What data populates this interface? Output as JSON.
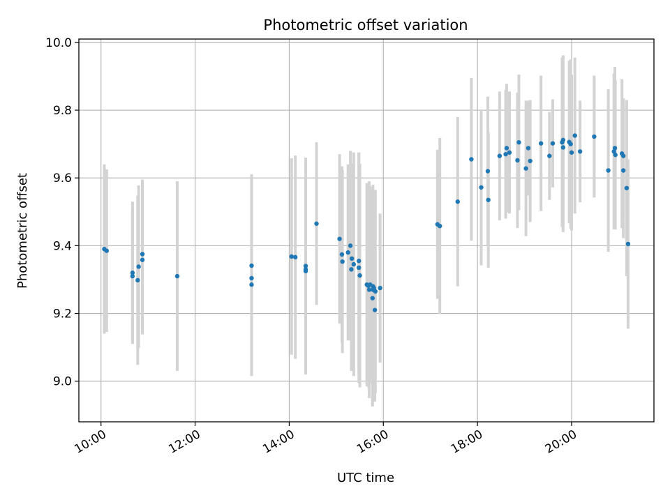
{
  "chart_data": {
    "type": "scatter",
    "title": "Photometric offset variation",
    "xlabel": "UTC time",
    "ylabel": "Photometric offset",
    "x_unit": "hours UTC",
    "xlim": [
      9.53,
      21.75
    ],
    "ylim": [
      8.88,
      10.01
    ],
    "x_ticks": [
      {
        "value": 10,
        "label": "10:00"
      },
      {
        "value": 12,
        "label": "12:00"
      },
      {
        "value": 14,
        "label": "14:00"
      },
      {
        "value": 16,
        "label": "16:00"
      },
      {
        "value": 18,
        "label": "18:00"
      },
      {
        "value": 20,
        "label": "20:00"
      }
    ],
    "y_ticks": [
      {
        "value": 9.0,
        "label": "9.0"
      },
      {
        "value": 9.2,
        "label": "9.2"
      },
      {
        "value": 9.4,
        "label": "9.4"
      },
      {
        "value": 9.6,
        "label": "9.6"
      },
      {
        "value": 9.8,
        "label": "9.8"
      },
      {
        "value": 10.0,
        "label": "10.0"
      }
    ],
    "grid": true,
    "colors": {
      "points": "#1f77b4",
      "errorbars": "#d3d3d3",
      "grid": "#b0b0b0"
    },
    "series": [
      {
        "x": [
          10.07,
          10.12,
          10.67,
          10.67,
          10.8,
          10.78,
          10.88,
          10.88,
          11.62,
          13.2,
          13.2,
          13.2,
          14.05,
          14.13,
          14.35,
          14.35,
          14.35,
          14.58,
          15.07,
          15.12,
          15.13,
          15.25,
          15.3,
          15.33,
          15.32,
          15.37,
          15.48,
          15.48,
          15.5,
          15.65,
          15.68,
          15.7,
          15.72,
          15.77,
          15.78,
          15.78,
          15.8,
          15.83,
          15.82,
          15.93,
          17.15,
          17.2,
          17.58,
          17.87,
          18.08,
          18.23,
          18.22,
          18.47,
          18.6,
          18.62,
          18.68,
          18.85,
          18.88,
          19.03,
          19.08,
          19.12,
          19.35,
          19.53,
          19.6,
          19.8,
          19.82,
          19.82,
          19.95,
          20.0,
          19.98,
          20.07,
          20.18,
          20.48,
          20.78,
          20.9,
          20.92,
          20.93,
          21.07,
          21.1,
          21.1,
          21.17,
          21.2
        ],
        "y": [
          9.39,
          9.385,
          9.32,
          9.31,
          9.338,
          9.298,
          9.375,
          9.358,
          9.31,
          9.341,
          9.304,
          9.285,
          9.368,
          9.366,
          9.34,
          9.33,
          9.325,
          9.465,
          9.42,
          9.374,
          9.353,
          9.38,
          9.4,
          9.362,
          9.33,
          9.345,
          9.355,
          9.335,
          9.312,
          9.285,
          9.282,
          9.27,
          9.285,
          9.245,
          9.27,
          9.28,
          9.275,
          9.265,
          9.21,
          9.275,
          9.463,
          9.458,
          9.53,
          9.655,
          9.572,
          9.535,
          9.62,
          9.665,
          9.67,
          9.688,
          9.675,
          9.652,
          9.705,
          9.628,
          9.688,
          9.65,
          9.702,
          9.665,
          9.702,
          9.705,
          9.69,
          9.712,
          9.706,
          9.675,
          9.7,
          9.725,
          9.678,
          9.722,
          9.622,
          9.678,
          9.688,
          9.668,
          9.672,
          9.622,
          9.665,
          9.57,
          9.405
        ],
        "err": [
          0.25,
          0.24,
          0.21,
          0.2,
          0.24,
          0.25,
          0.22,
          0.22,
          0.28,
          0.27,
          0.23,
          0.27,
          0.29,
          0.3,
          0.32,
          0.3,
          0.3,
          0.24,
          0.25,
          0.26,
          0.27,
          0.26,
          0.28,
          0.28,
          0.3,
          0.33,
          0.32,
          0.34,
          0.33,
          0.3,
          0.3,
          0.32,
          0.29,
          0.32,
          0.29,
          0.3,
          0.29,
          0.3,
          0.27,
          0.22,
          0.22,
          0.26,
          0.25,
          0.24,
          0.23,
          0.2,
          0.22,
          0.19,
          0.19,
          0.19,
          0.18,
          0.2,
          0.2,
          0.2,
          0.14,
          0.18,
          0.2,
          0.13,
          0.13,
          0.25,
          0.25,
          0.25,
          0.24,
          0.23,
          0.25,
          0.23,
          0.15,
          0.18,
          0.24,
          0.23,
          0.24,
          0.22,
          0.22,
          0.2,
          0.17,
          0.26,
          0.25
        ]
      }
    ]
  }
}
